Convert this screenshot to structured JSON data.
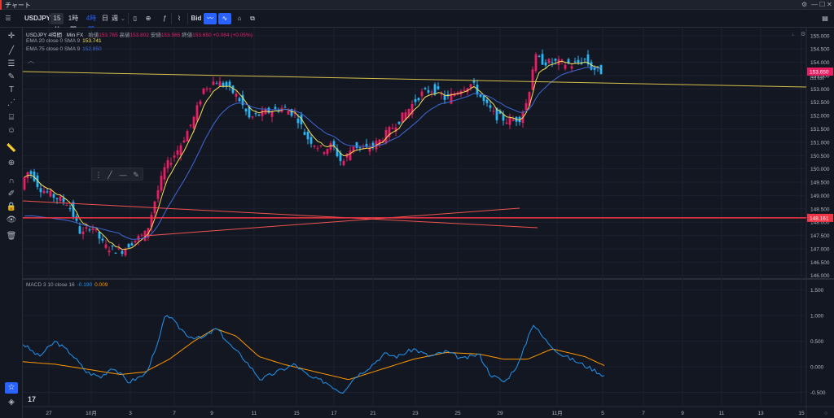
{
  "window": {
    "title": "チャート",
    "controls": [
      "⚙",
      "—",
      "☐",
      "✕"
    ]
  },
  "toolbar": {
    "symbol": "USDJPY",
    "intervals": [
      "15分",
      "1時間",
      "4時間",
      "日",
      "週"
    ],
    "active_interval": "4時間",
    "bid_label": "Bid",
    "colors": {
      "accent": "#2962ff"
    }
  },
  "legend": {
    "main": {
      "symbol": "USDJPY",
      "interval": "4時間",
      "source": "Min FX",
      "o_label": "始値",
      "o_value": "153.765",
      "h_label": "高値",
      "h_value": "153.802",
      "l_label": "安値",
      "l_value": "153.565",
      "c_label": "終値",
      "c_value": "153.650",
      "change": "+0.084 (+0.05%)"
    },
    "ema20": {
      "label": "EMA 20 close 0 SMA 9",
      "value": "153.741",
      "color": "#f5e05b"
    },
    "ema75": {
      "label": "EMA 75 close 0 SMA 9",
      "value": "152.850",
      "color": "#3f6ad8"
    },
    "macd": {
      "label": "MACD 3 10 close 16",
      "value1": "-0.190",
      "value2": "0.009",
      "color1": "#2196f3",
      "color2": "#ff9800"
    }
  },
  "chart_data": [
    {
      "type": "candlestick",
      "y_axis": {
        "ylim": [
          145.9,
          155.3
        ],
        "ticks": [
          "155.000",
          "154.500",
          "154.000",
          "153.500",
          "153.000",
          "152.500",
          "152.000",
          "151.500",
          "151.000",
          "150.500",
          "150.000",
          "149.500",
          "149.000",
          "148.500",
          "148.000",
          "147.500",
          "147.000",
          "146.500",
          "146.000"
        ]
      },
      "x_axis": {
        "ticks": [
          "27",
          "10月",
          "3",
          "7",
          "9",
          "11",
          "15",
          "17",
          "21",
          "23",
          "25",
          "29",
          "11月",
          "5",
          "7",
          "9",
          "11",
          "13",
          "15"
        ]
      },
      "price_labels": {
        "last": "153.650",
        "last_sub": "153.650",
        "line": "148.161"
      },
      "series": [
        {
          "name": "USDJPY",
          "color_up": "#e91e63",
          "color_down": "#29b6f6"
        },
        {
          "name": "EMA 20",
          "color": "#f5e05b"
        },
        {
          "name": "EMA 75",
          "color": "#3f6ad8"
        }
      ]
    },
    {
      "type": "line",
      "y_axis": {
        "ylim": [
          -0.65,
          1.7
        ],
        "ticks": [
          "1.500",
          "1.000",
          "0.500",
          "0.000",
          "-0.500"
        ]
      },
      "series": [
        {
          "name": "MACD",
          "color": "#2196f3"
        },
        {
          "name": "Signal",
          "color": "#ff9800"
        }
      ]
    }
  ]
}
